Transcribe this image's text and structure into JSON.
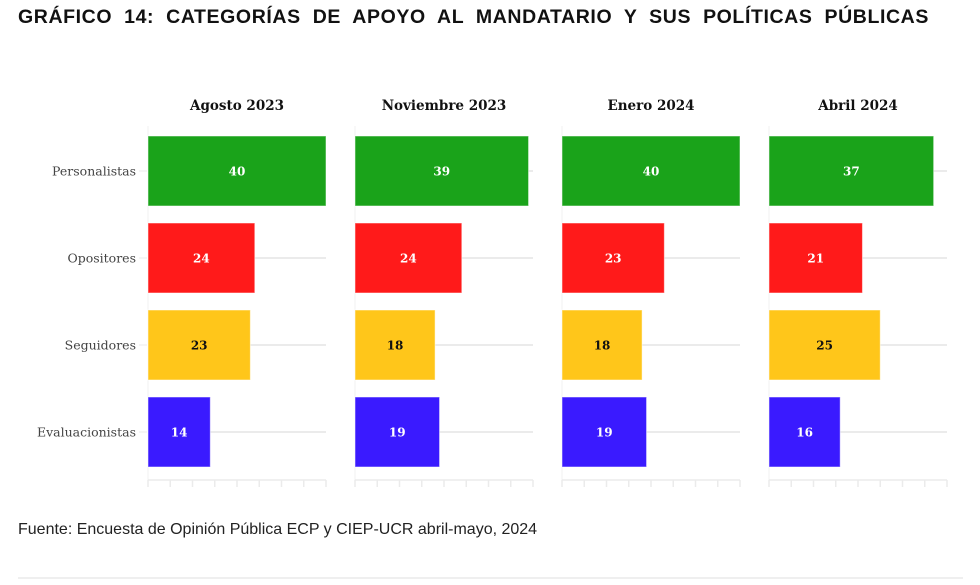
{
  "title": "GRÁFICO 14: CATEGORÍAS DE APOYO AL MANDATARIO Y SUS POLÍTICAS PÚBLICAS",
  "source": "Fuente: Encuesta de Opinión Pública ECP y CIEP-UCR abril-mayo, 2024",
  "chart_data": {
    "type": "bar",
    "orientation": "horizontal",
    "faceted": true,
    "title": "GRÁFICO 14: CATEGORÍAS DE APOYO AL MANDATARIO Y SUS POLÍTICAS PÚBLICAS",
    "xlabel": "",
    "ylabel": "",
    "xlim": [
      0,
      40
    ],
    "grid": true,
    "categories": [
      "Personalistas",
      "Opositores",
      "Seguidores",
      "Evaluacionistas"
    ],
    "colors": [
      "#1aa31a",
      "#ff1a1a",
      "#ffc61a",
      "#3a1aff"
    ],
    "label_colors": [
      "#ffffff",
      "#ffffff",
      "#111111",
      "#ffffff"
    ],
    "panels": [
      {
        "name": "Agosto 2023",
        "values": [
          40,
          24,
          23,
          14
        ]
      },
      {
        "name": "Noviembre 2023",
        "values": [
          39,
          24,
          18,
          19
        ]
      },
      {
        "name": "Enero 2024",
        "values": [
          40,
          23,
          18,
          19
        ]
      },
      {
        "name": "Abril 2024",
        "values": [
          37,
          21,
          25,
          16
        ]
      }
    ]
  }
}
